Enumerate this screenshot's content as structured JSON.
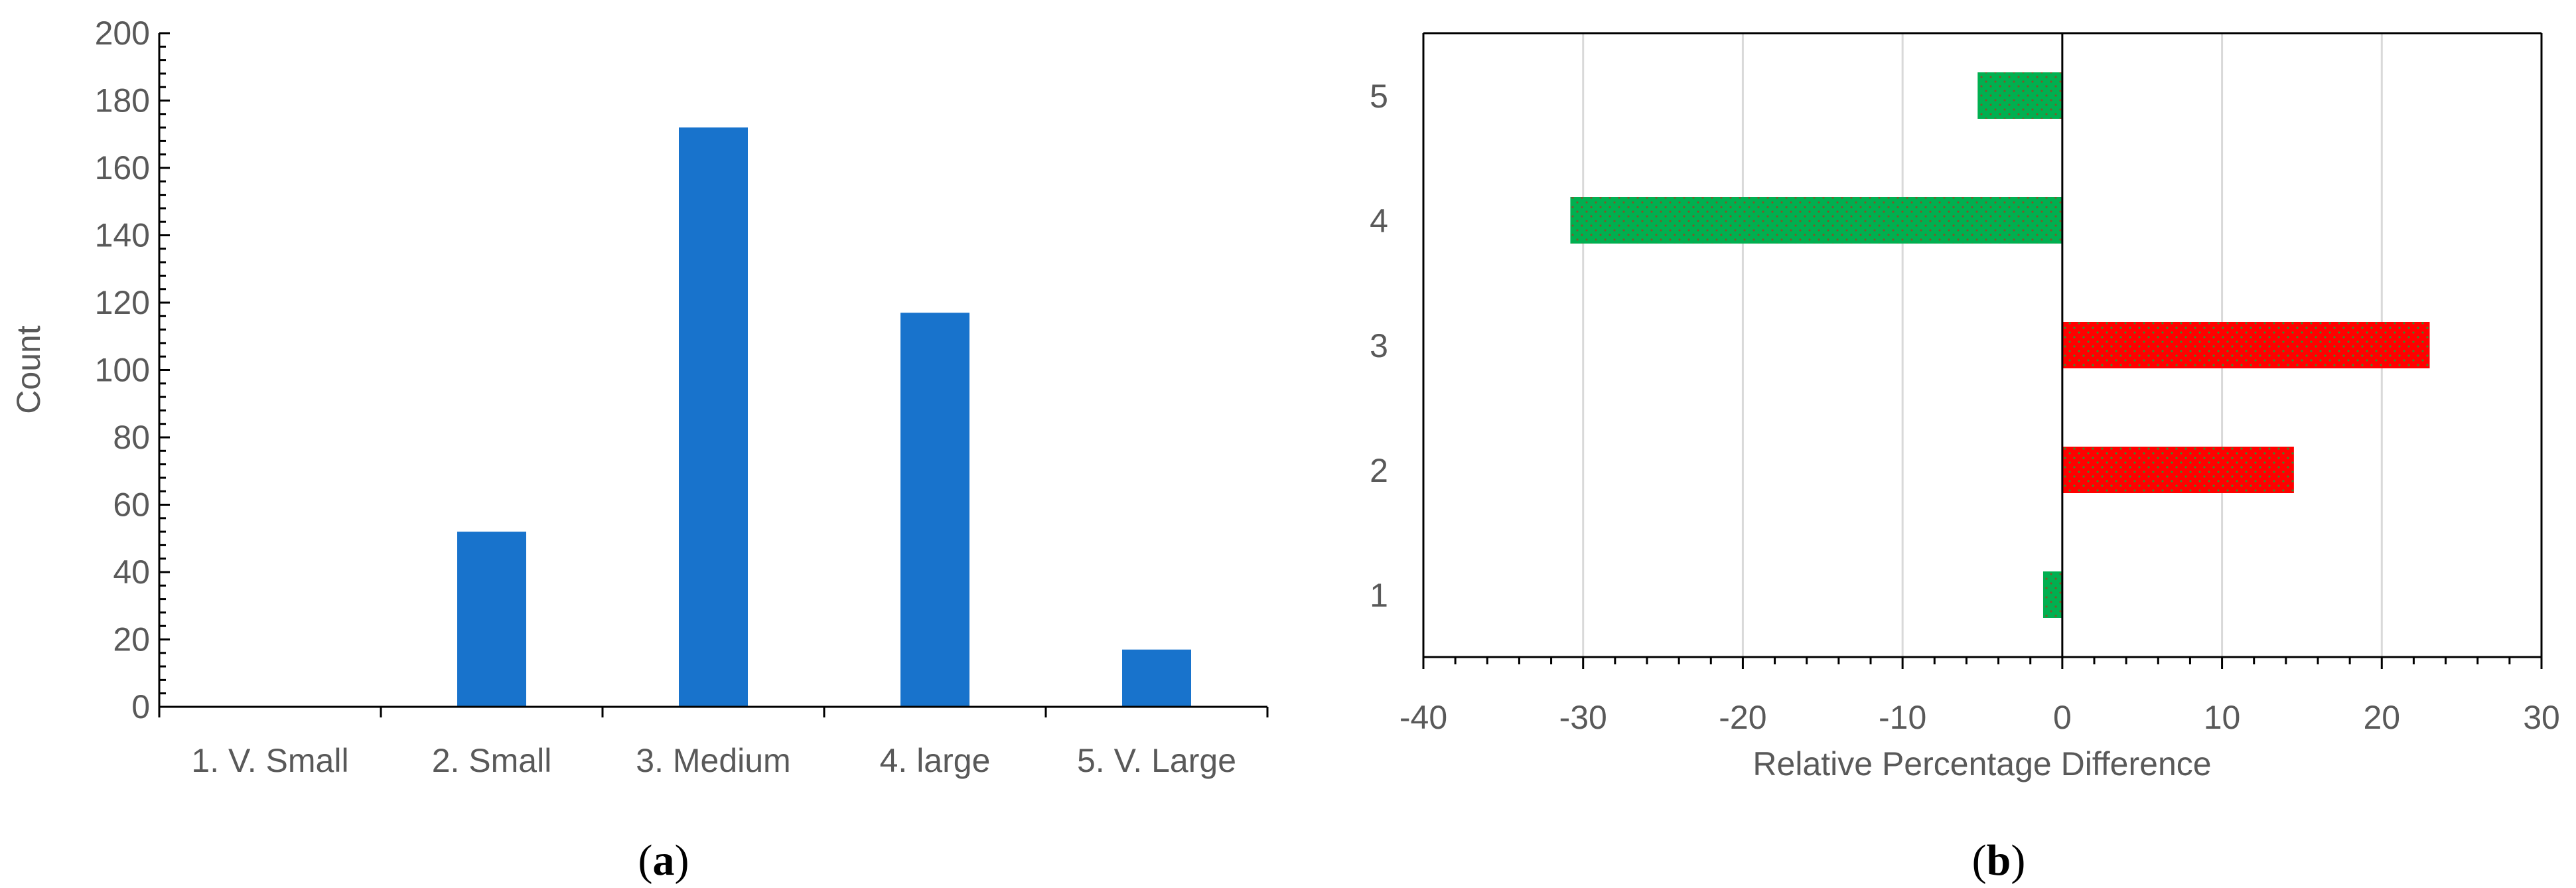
{
  "chart_data": [
    {
      "type": "bar",
      "panel_label": "a",
      "categories": [
        "1. V. Small",
        "2. Small",
        "3. Medium",
        "4. large",
        "5. V. Large"
      ],
      "values": [
        0,
        52,
        172,
        117,
        17
      ],
      "xlabel": "",
      "ylabel": "Count",
      "ylim": [
        0,
        200
      ],
      "yticks": [
        "0",
        "20",
        "40",
        "60",
        "80",
        "100",
        "120",
        "140",
        "160",
        "180",
        "200"
      ],
      "grid": false,
      "colors": {
        "bar": "#1873CC"
      }
    },
    {
      "type": "bar",
      "orientation": "horizontal",
      "panel_label": "b",
      "categories": [
        "1",
        "2",
        "3",
        "4",
        "5"
      ],
      "values": [
        -1.2,
        14.5,
        23.0,
        -30.8,
        -5.3
      ],
      "xlabel": "Relative Percentage Difference",
      "ylabel": "",
      "xlim": [
        -40,
        30
      ],
      "xticks": [
        "-40",
        "-30",
        "-20",
        "-10",
        "0",
        "10",
        "20",
        "30"
      ],
      "grid": true,
      "colors": {
        "positive": "#FF0000",
        "negative": "#00B050",
        "grid": "#D9D9D9"
      }
    }
  ]
}
